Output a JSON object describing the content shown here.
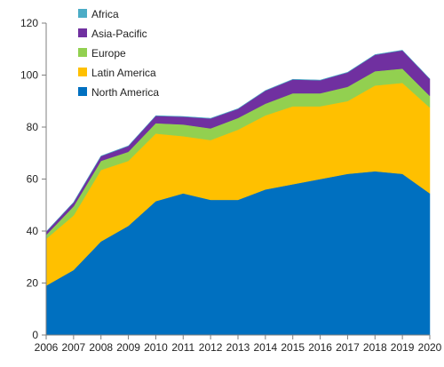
{
  "chart_data": {
    "type": "area",
    "stacked": true,
    "title": "",
    "xlabel": "",
    "ylabel": "",
    "x": [
      2006,
      2007,
      2008,
      2009,
      2010,
      2011,
      2012,
      2013,
      2014,
      2015,
      2016,
      2017,
      2018,
      2019,
      2020
    ],
    "ylim": [
      0,
      120
    ],
    "yticks": [
      0,
      20,
      40,
      60,
      80,
      100,
      120
    ],
    "grid": false,
    "legend_position": "top-left",
    "series": [
      {
        "name": "North America",
        "color": "#0070c0",
        "values": [
          19,
          25,
          36,
          42,
          51.5,
          54.5,
          52,
          52,
          56,
          58,
          60,
          62,
          63,
          62,
          54.5
        ]
      },
      {
        "name": "Latin America",
        "color": "#ffc000",
        "values": [
          18,
          21,
          27.5,
          25,
          26,
          22,
          23,
          27,
          28.5,
          30,
          28,
          28,
          33,
          35,
          33
        ]
      },
      {
        "name": "Europe",
        "color": "#92d050",
        "values": [
          1.5,
          3.5,
          3.5,
          3.5,
          4,
          4.5,
          4.5,
          4.5,
          4.5,
          5,
          5,
          5.5,
          5.5,
          5.5,
          4.5
        ]
      },
      {
        "name": "Asia-Pacific",
        "color": "#7030a0",
        "values": [
          1.2,
          1.5,
          1.8,
          2.2,
          2.8,
          3.0,
          3.8,
          3.5,
          5.0,
          5.3,
          5.0,
          5.5,
          6.3,
          7.0,
          6.5
        ]
      },
      {
        "name": "Africa",
        "color": "#4bacc6",
        "values": [
          0.1,
          0.1,
          0.1,
          0.1,
          0.1,
          0.1,
          0.1,
          0.1,
          0.1,
          0.1,
          0.1,
          0.1,
          0.1,
          0.1,
          0.1
        ]
      }
    ]
  }
}
